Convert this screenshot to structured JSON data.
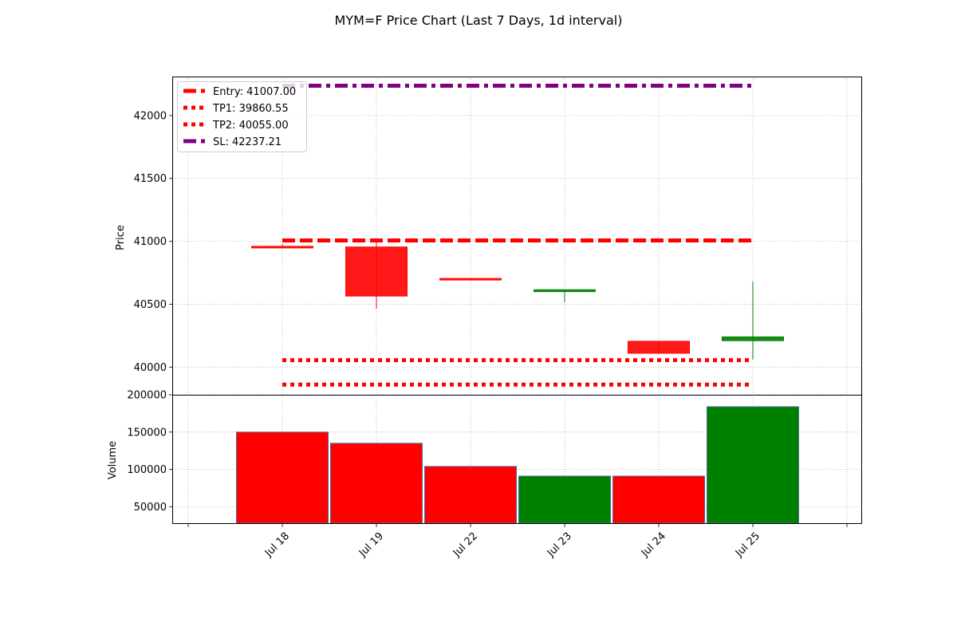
{
  "chart_data": {
    "type": "candlestick",
    "title": "MYM=F Price Chart (Last 7 Days, 1d interval)",
    "categories": [
      "Jul 18",
      "Jul 19",
      "Jul 22",
      "Jul 23",
      "Jul 24",
      "Jul 25"
    ],
    "price_panel": {
      "ylabel": "Price",
      "ylim": [
        39780,
        42310
      ],
      "yticks": [
        40000,
        40500,
        41000,
        41500,
        42000
      ],
      "grid": true,
      "candles": [
        {
          "date": "Jul 18",
          "open": 40960,
          "high": 40980,
          "low": 40950,
          "close": 40955,
          "color": "#ff0000"
        },
        {
          "date": "Jul 19",
          "open": 40955,
          "high": 41010,
          "low": 40465,
          "close": 40565,
          "color": "#ff0000"
        },
        {
          "date": "Jul 22",
          "open": 40705,
          "high": 40705,
          "low": 40695,
          "close": 40695,
          "color": "#ff0000"
        },
        {
          "date": "Jul 23",
          "open": 40600,
          "high": 40615,
          "low": 40515,
          "close": 40615,
          "color": "#008000"
        },
        {
          "date": "Jul 24",
          "open": 40205,
          "high": 40205,
          "low": 40110,
          "close": 40110,
          "color": "#ff0000"
        },
        {
          "date": "Jul 25",
          "open": 40210,
          "high": 40680,
          "low": 40060,
          "close": 40240,
          "color": "#008000"
        }
      ],
      "levels": [
        {
          "label": "Entry: 41007.00",
          "value": 41007.0,
          "color": "#ff0000",
          "style": "dashed"
        },
        {
          "label": "TP1: 39860.55",
          "value": 39860.55,
          "color": "#ff0000",
          "style": "dotted"
        },
        {
          "label": "TP2: 40055.00",
          "value": 40055.0,
          "color": "#ff0000",
          "style": "dotted"
        },
        {
          "label": "SL: 42237.21",
          "value": 42237.21,
          "color": "#800080",
          "style": "dashdot"
        }
      ],
      "legend_position": "top-left"
    },
    "volume_panel": {
      "ylabel": "Volume",
      "ylim": [
        28000,
        200000
      ],
      "yticks": [
        50000,
        100000,
        150000,
        200000
      ],
      "grid": true,
      "bars": [
        {
          "date": "Jul 18",
          "value": 150000,
          "color": "#ff0000"
        },
        {
          "date": "Jul 19",
          "value": 135000,
          "color": "#ff0000"
        },
        {
          "date": "Jul 22",
          "value": 104000,
          "color": "#ff0000"
        },
        {
          "date": "Jul 23",
          "value": 91000,
          "color": "#008000"
        },
        {
          "date": "Jul 24",
          "value": 91000,
          "color": "#ff0000"
        },
        {
          "date": "Jul 25",
          "value": 184000,
          "color": "#008000"
        }
      ]
    }
  }
}
